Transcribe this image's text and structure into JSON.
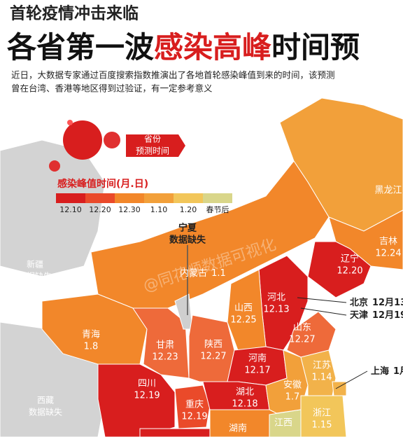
{
  "header": {
    "line1": "首轮疫情冲击来临",
    "line2": [
      "各省第一波",
      "感染高峰",
      "时间预"
    ],
    "intro": [
      "近日，大数据专家通过百度搜索指数推演出了各地首轮感染峰值到来的时间，该预测",
      "曾在台湾、香港等地区得到过验证，有一定参考意义"
    ]
  },
  "watermark": "@同花顺数据可视化",
  "badge": [
    "省份",
    "预测时间"
  ],
  "legend": {
    "title": "感染峰值时间(月.日)",
    "items": [
      {
        "label": "12.10",
        "color": "#d81e1e"
      },
      {
        "label": "12.20",
        "color": "#ea4a2a"
      },
      {
        "label": "12.30",
        "color": "#f2872a"
      },
      {
        "label": "1.10",
        "color": "#f2a03a"
      },
      {
        "label": "1.20",
        "color": "#f2c65a"
      },
      {
        "label": "春节后",
        "color": "#d9d68a"
      }
    ]
  },
  "provinces": [
    {
      "name": "宁夏",
      "value": "数据缺失"
    },
    {
      "name": "新疆",
      "value": "数据缺失"
    },
    {
      "name": "西藏",
      "value": "数据缺失"
    },
    {
      "name": "黑龙江"
    },
    {
      "name": "内蒙古",
      "value": "1.1"
    },
    {
      "name": "吉林",
      "value": "12.24"
    },
    {
      "name": "辽宁",
      "value": "12.20"
    },
    {
      "name": "北京",
      "value": "12月13"
    },
    {
      "name": "天津",
      "value": "12月19"
    },
    {
      "name": "河北",
      "value": "12.13"
    },
    {
      "name": "山西",
      "value": "12.25"
    },
    {
      "name": "山东",
      "value": "12.27"
    },
    {
      "name": "青海",
      "value": "1.8"
    },
    {
      "name": "甘肃",
      "value": "12.23"
    },
    {
      "name": "陕西",
      "value": "12.27"
    },
    {
      "name": "河南",
      "value": "12.17"
    },
    {
      "name": "四川",
      "value": "12.19"
    },
    {
      "name": "重庆",
      "value": "12.19"
    },
    {
      "name": "湖北",
      "value": "12.18"
    },
    {
      "name": "安徽",
      "value": "1.7"
    },
    {
      "name": "江苏",
      "value": "1.14"
    },
    {
      "name": "上海",
      "value": "1月"
    },
    {
      "name": "浙江",
      "value": "1.15"
    },
    {
      "name": "湖南"
    },
    {
      "name": "江西"
    }
  ]
}
